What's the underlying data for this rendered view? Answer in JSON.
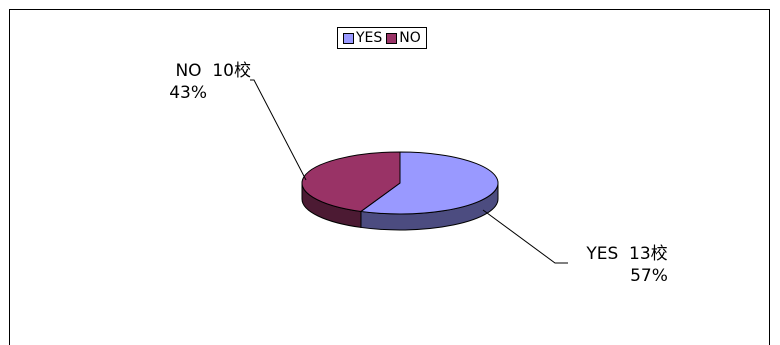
{
  "chart_data": {
    "type": "pie",
    "style": "3d",
    "title": "",
    "legend_position": "top",
    "slices": [
      {
        "name": "YES",
        "label_value": "13校",
        "percent": "57%",
        "value": 13,
        "color": "#9999ff",
        "side_color": "#4c4c80"
      },
      {
        "name": "NO",
        "label_value": "10校",
        "percent": "43%",
        "value": 10,
        "color": "#993366",
        "side_color": "#4c1a33"
      }
    ]
  }
}
